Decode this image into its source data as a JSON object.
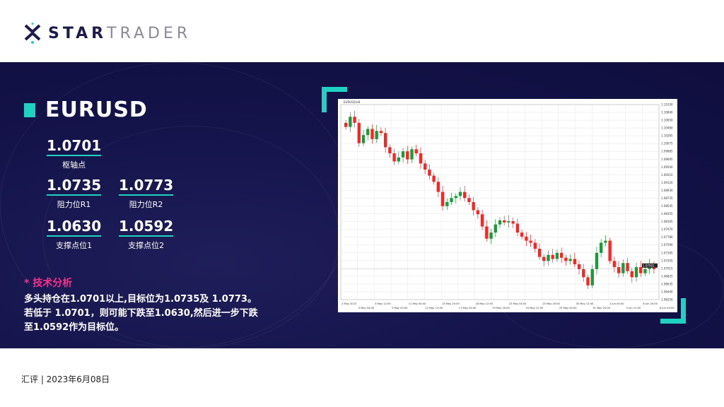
{
  "brand": {
    "name_bold": "STAR",
    "name_light": "TRADER",
    "accent": "#1fd1c1"
  },
  "pair": "EURUSD",
  "levels": {
    "pivot": {
      "value": "1.0701",
      "label": "枢轴点"
    },
    "r1": {
      "value": "1.0735",
      "label": "阻力位R1"
    },
    "r2": {
      "value": "1.0773",
      "label": "阻力位R2"
    },
    "s1": {
      "value": "1.0630",
      "label": "支撑点位1"
    },
    "s2": {
      "value": "1.0592",
      "label": "支撑点位2"
    }
  },
  "analysis": {
    "heading": "* 技术分析",
    "lines": [
      "多头持仓在1.0701以上,目标位为1.0735及 1.0773。",
      "若低于 1.0701，则可能下跌至1.0630,然后进一步下跌",
      "至1.0592作为目标位。"
    ]
  },
  "footer": "汇评 | 2023年6月08日",
  "chart_data": {
    "type": "candlestick",
    "title": "EURUSD,H4",
    "ylim": [
      1.0625,
      1.1105
    ],
    "current_price": "1.07001",
    "colors": {
      "up": "#1a9a3a",
      "down": "#ff2222"
    },
    "grid": true,
    "yticks": [
      "1.11030",
      "1.10840",
      "1.10650",
      "1.10460",
      "1.10265",
      "1.10075",
      "1.09885",
      "1.09695",
      "1.09500",
      "1.09310",
      "1.09120",
      "1.08930",
      "1.08735",
      "1.08545",
      "1.08355",
      "1.08165",
      "1.07970",
      "1.07780",
      "1.07590",
      "1.07395",
      "1.07205",
      "1.07015",
      "1.06825",
      "1.06635",
      "1.06440",
      "1.06250"
    ],
    "xticks": [
      "2 May 2023",
      "3 May 04:00",
      "4 May 12:00",
      "5 May 20:00",
      "11 May 04:00",
      "12 May 12:00",
      "15 May 20:00",
      "17 May 04:00",
      "18 May 12:00",
      "19 May 20:00",
      "23 May 04:00",
      "24 May 12:00",
      "25 May 20:00",
      "29 May 04:00",
      "30 May 12:00",
      "31 May 20:00",
      "2 Jun 04:00",
      "5 Jun 12:00",
      "6 Jun 20:00",
      "8 Jun 04:00"
    ],
    "closes": [
      1.105,
      1.1075,
      1.106,
      1.101,
      1.103,
      1.1045,
      1.102,
      1.104,
      1.1035,
      1.1,
      1.0985,
      1.0965,
      1.0975,
      1.099,
      1.097,
      1.0995,
      1.0985,
      1.096,
      1.0945,
      1.093,
      1.0915,
      1.089,
      1.0855,
      1.0865,
      1.0875,
      1.088,
      1.089,
      1.0875,
      1.0865,
      1.0845,
      1.0835,
      1.0805,
      1.0775,
      1.079,
      1.081,
      1.082,
      1.0815,
      1.0818,
      1.0812,
      1.079,
      1.078,
      1.077,
      1.0765,
      1.075,
      1.073,
      1.072,
      1.0735,
      1.0725,
      1.074,
      1.0728,
      1.072,
      1.0725,
      1.0712,
      1.07,
      1.068,
      1.066,
      1.07,
      1.074,
      1.0765,
      1.077,
      1.072,
      1.0705,
      1.069,
      1.0715,
      1.0695,
      1.068,
      1.0705,
      1.069,
      1.07,
      1.0712,
      1.07
    ]
  }
}
